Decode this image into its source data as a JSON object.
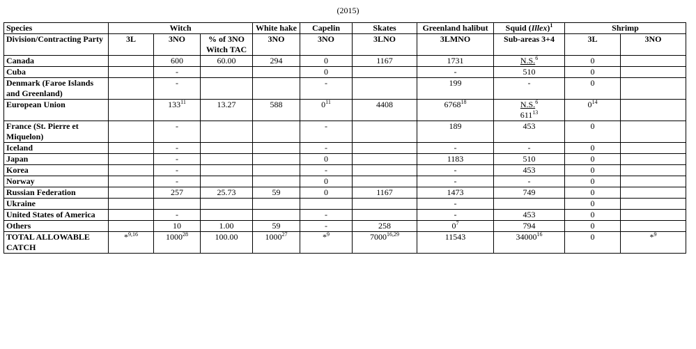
{
  "caption": "(2015)",
  "header": {
    "species": "Species",
    "witch": "Witch",
    "white_hake": "White hake",
    "capelin": "Capelin",
    "skates": "Skates",
    "greenland_halibut": "Greenland halibut",
    "squid": {
      "before": "Squid (",
      "italic": "Illex",
      "after": ")",
      "sup": "1"
    },
    "shrimp": "Shrimp",
    "division": "Division/Contracting Party",
    "sub": [
      "3L",
      "3NO",
      "% of 3NO Witch TAC",
      "3NO",
      "3NO",
      "3LNO",
      "3LMNO",
      "Sub-areas 3+4",
      "3L",
      "3NO"
    ]
  },
  "rows": [
    {
      "party": "Canada",
      "cells": [
        null,
        "600",
        "60.00",
        "294",
        "0",
        "1167",
        "1731",
        {
          "text": "N.S.",
          "sup": "6",
          "underline": true
        },
        "0",
        null
      ]
    },
    {
      "party": "Cuba",
      "cells": [
        null,
        "-",
        null,
        null,
        "0",
        null,
        "-",
        "510",
        "0",
        null
      ]
    },
    {
      "party": "Denmark (Faroe Islands and Greenland)",
      "cells": [
        null,
        "-",
        null,
        null,
        "-",
        null,
        "199",
        "-",
        "0",
        null
      ]
    },
    {
      "party": "European Union",
      "cells": [
        null,
        {
          "text": "133",
          "sup": "11"
        },
        "13.27",
        "588",
        {
          "text": "0",
          "sup": "11"
        },
        "4408",
        {
          "text": "6768",
          "sup": "18"
        },
        {
          "lines": [
            {
              "text": "N.S.",
              "sup": "6",
              "underline": true
            },
            {
              "text": "611",
              "sup": "13"
            }
          ]
        },
        {
          "text": "0",
          "sup": "14"
        },
        null
      ]
    },
    {
      "party": "France (St. Pierre et Miquelon)",
      "cells": [
        null,
        "-",
        null,
        null,
        "-",
        null,
        "189",
        "453",
        "0",
        null
      ]
    },
    {
      "party": "Iceland",
      "cells": [
        null,
        "-",
        null,
        null,
        "-",
        null,
        "-",
        "-",
        "0",
        null
      ]
    },
    {
      "party": "Japan",
      "cells": [
        null,
        "-",
        null,
        null,
        "0",
        null,
        "1183",
        "510",
        "0",
        null
      ]
    },
    {
      "party": "Korea",
      "cells": [
        null,
        "-",
        null,
        null,
        "-",
        null,
        "-",
        "453",
        "0",
        null
      ]
    },
    {
      "party": "Norway",
      "cells": [
        null,
        "-",
        null,
        null,
        "0",
        null,
        "-",
        "-",
        "0",
        null
      ]
    },
    {
      "party": "Russian Federation",
      "cells": [
        null,
        "257",
        "25.73",
        "59",
        "0",
        "1167",
        "1473",
        "749",
        "0",
        null
      ]
    },
    {
      "party": "Ukraine",
      "cells": [
        null,
        null,
        null,
        null,
        null,
        null,
        "-",
        null,
        "0",
        null
      ]
    },
    {
      "party": "United States of America",
      "cells": [
        null,
        "-",
        null,
        null,
        "-",
        null,
        "-",
        "453",
        "0",
        null
      ]
    },
    {
      "party": "Others",
      "cells": [
        null,
        "10",
        "1.00",
        "59",
        "-",
        "258",
        {
          "text": "0",
          "sup": "7"
        },
        "794",
        "0",
        null
      ]
    },
    {
      "party": "TOTAL ALLOWABLE CATCH",
      "cells": [
        {
          "text": "*",
          "sup": "9,16"
        },
        {
          "text": "1000",
          "sup": "28"
        },
        "100.00",
        {
          "text": "1000",
          "sup": "27"
        },
        {
          "text": "*",
          "sup": "9"
        },
        {
          "text": "7000",
          "sup": "16,29"
        },
        "11543",
        {
          "text": "34000",
          "sup": "16"
        },
        "0",
        {
          "text": "*",
          "sup": "9"
        }
      ]
    }
  ]
}
